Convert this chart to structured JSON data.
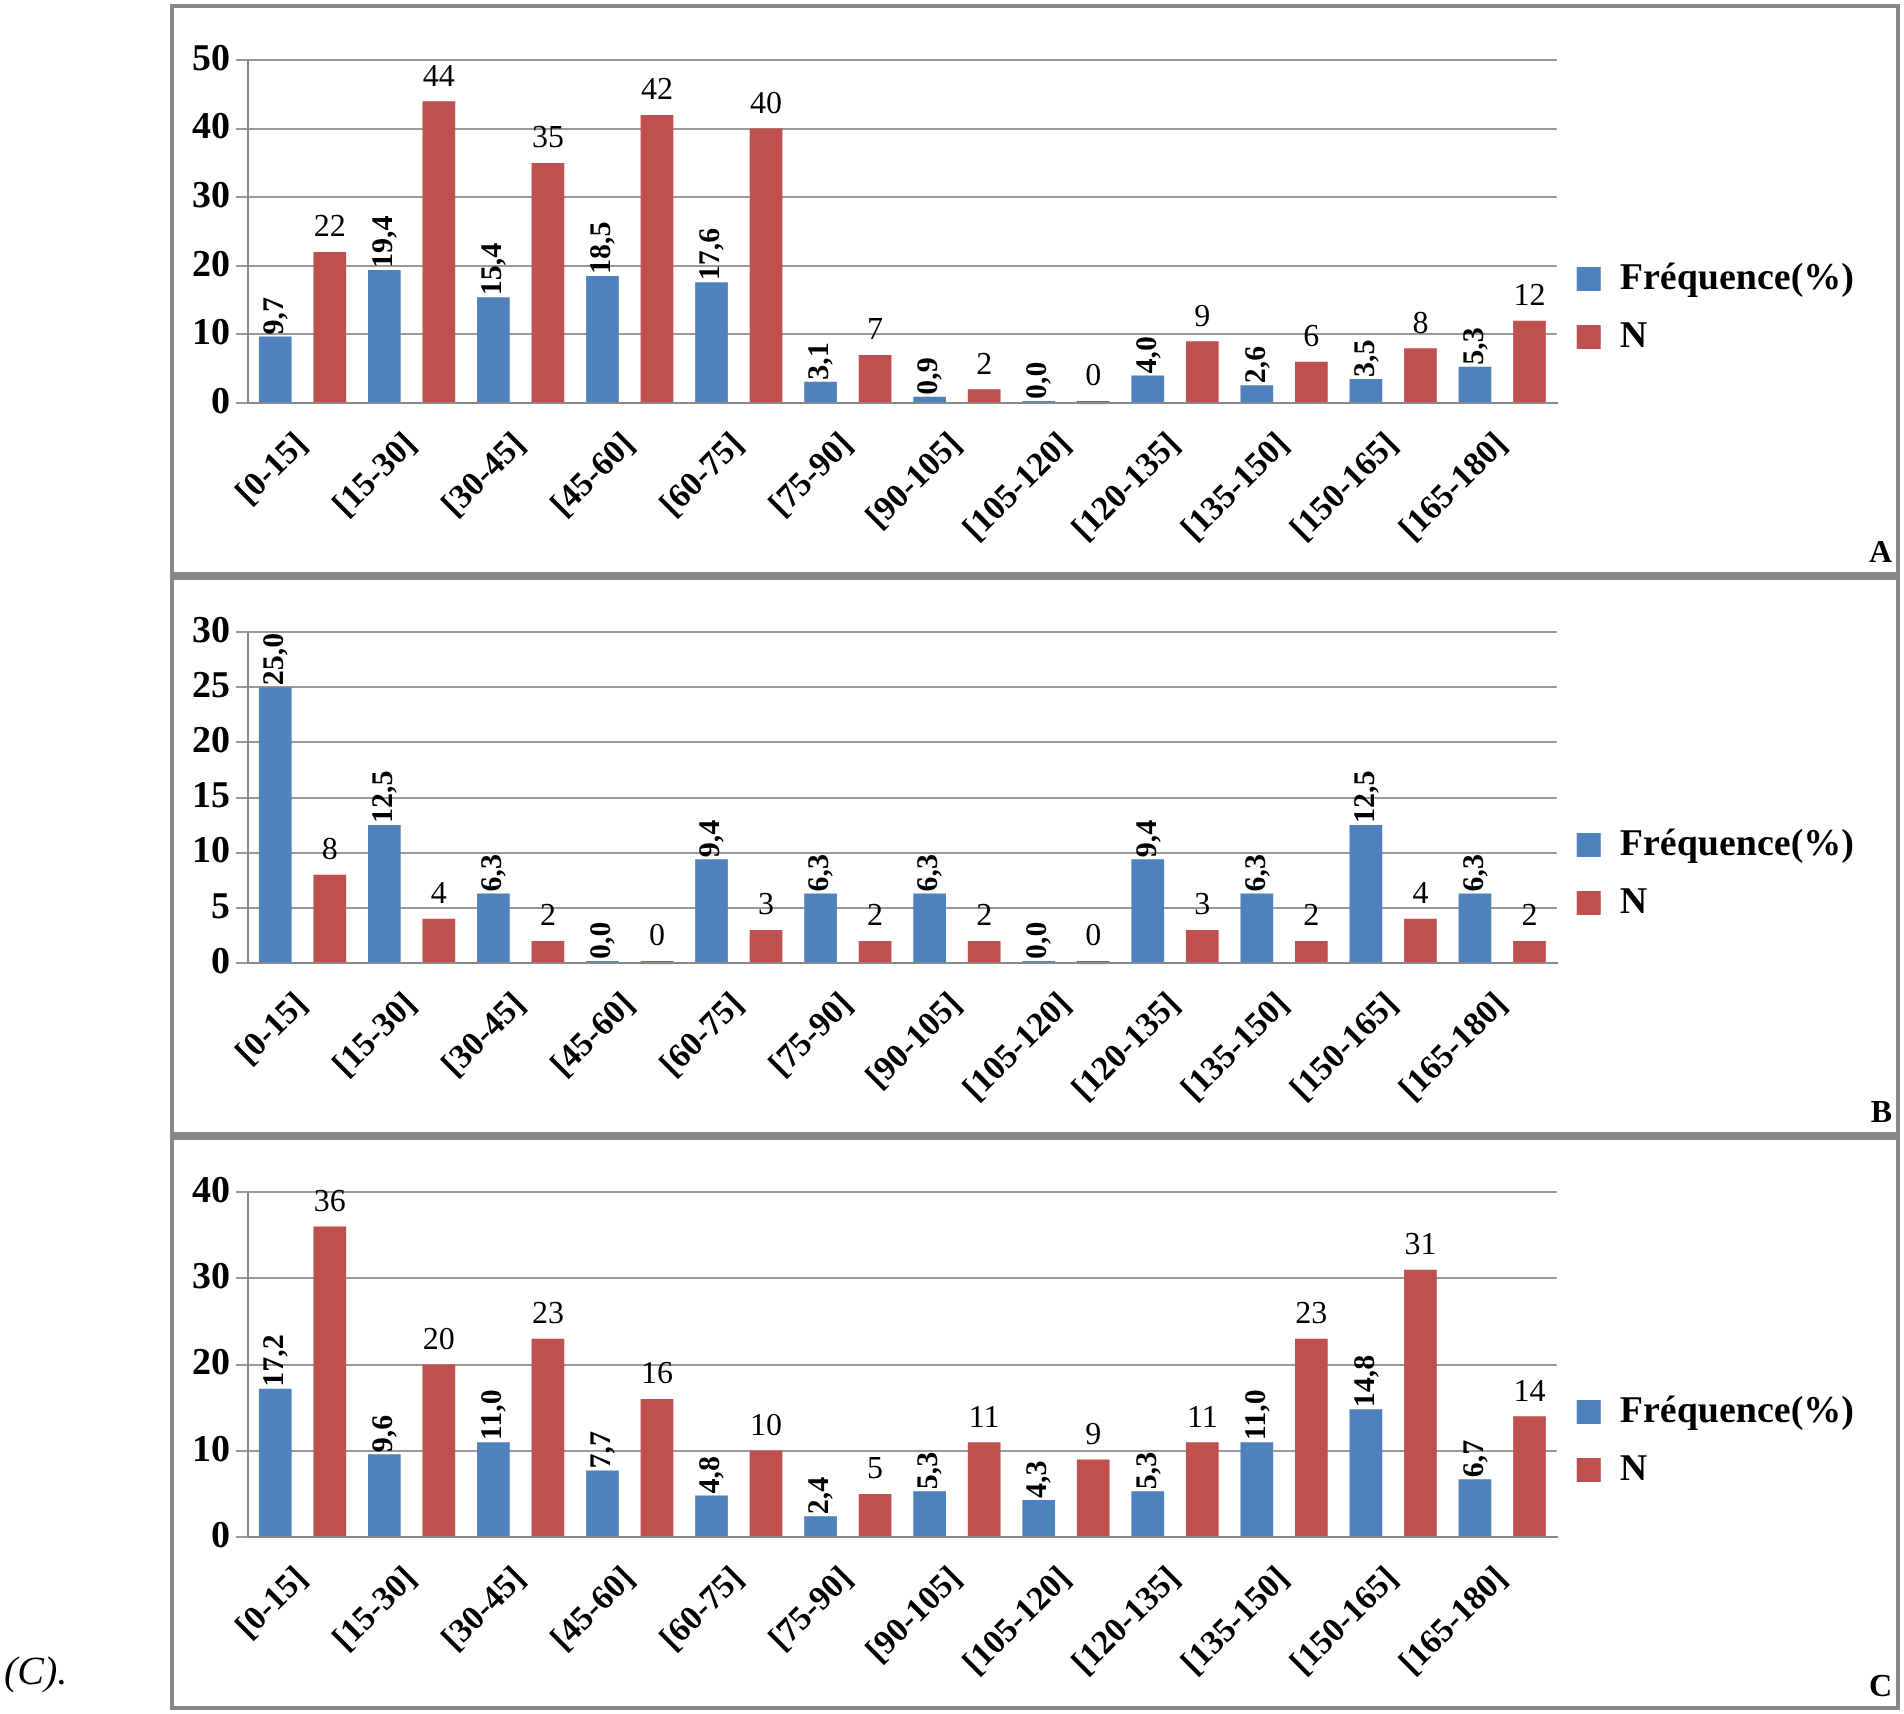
{
  "chart_data": [
    {
      "type": "bar",
      "categories": [
        "[0-15]",
        "[15-30]",
        "[30-45]",
        "[45-60]",
        "[60-75]",
        "[75-90]",
        "[90-105]",
        "[105-120]",
        "[120-135]",
        "[135-150]",
        "[150-165]",
        "[165-180]"
      ],
      "series": [
        {
          "name": "Fréquence(%)",
          "color": "#4f81bd",
          "values": [
            9.7,
            19.4,
            15.4,
            18.5,
            17.6,
            3.1,
            0.9,
            0.0,
            4.0,
            2.6,
            3.5,
            5.3
          ],
          "value_labels": [
            "9,7",
            "19,4",
            "15,4",
            "18,5",
            "17,6",
            "3,1",
            "0,9",
            "0,0",
            "4,0",
            "2,6",
            "3,5",
            "5,3"
          ]
        },
        {
          "name": "N",
          "color": "#c0504d",
          "values": [
            22,
            44,
            35,
            42,
            40,
            7,
            2,
            0,
            9,
            6,
            8,
            12
          ],
          "value_labels": [
            "22",
            "44",
            "35",
            "42",
            "40",
            "7",
            "2",
            "0",
            "9",
            "6",
            "8",
            "12"
          ]
        }
      ],
      "ylim": [
        0,
        50
      ],
      "yticks": [
        0,
        10,
        20,
        30,
        40,
        50
      ],
      "grid": "y",
      "legend": "right",
      "annotations": [
        "A"
      ]
    },
    {
      "type": "bar",
      "categories": [
        "[0-15]",
        "[15-30]",
        "[30-45]",
        "[45-60]",
        "[60-75]",
        "[75-90]",
        "[90-105]",
        "[105-120]",
        "[120-135]",
        "[135-150]",
        "[150-165]",
        "[165-180]"
      ],
      "series": [
        {
          "name": "Fréquence(%)",
          "color": "#4f81bd",
          "values": [
            25.0,
            12.5,
            6.3,
            0.0,
            9.4,
            6.3,
            6.3,
            0.0,
            9.4,
            6.3,
            12.5,
            6.3
          ],
          "value_labels": [
            "25,0",
            "12,5",
            "6,3",
            "0,0",
            "9,4",
            "6,3",
            "6,3",
            "0,0",
            "9,4",
            "6,3",
            "12,5",
            "6,3"
          ]
        },
        {
          "name": "N",
          "color": "#c0504d",
          "values": [
            8,
            4,
            2,
            0,
            3,
            2,
            2,
            0,
            3,
            2,
            4,
            2
          ],
          "value_labels": [
            "8",
            "4",
            "2",
            "0",
            "3",
            "2",
            "2",
            "0",
            "3",
            "2",
            "4",
            "2"
          ]
        }
      ],
      "ylim": [
        0,
        30
      ],
      "yticks": [
        0,
        5,
        10,
        15,
        20,
        25,
        30
      ],
      "grid": "y",
      "legend": "right",
      "annotations": [
        "B"
      ]
    },
    {
      "type": "bar",
      "categories": [
        "[0-15]",
        "[15-30]",
        "[30-45]",
        "[45-60]",
        "[60-75]",
        "[75-90]",
        "[90-105]",
        "[105-120]",
        "[120-135]",
        "[135-150]",
        "[150-165]",
        "[165-180]"
      ],
      "series": [
        {
          "name": "Fréquence(%)",
          "color": "#4f81bd",
          "values": [
            17.2,
            9.6,
            11.0,
            7.7,
            4.8,
            2.4,
            5.3,
            4.3,
            5.3,
            11.0,
            14.8,
            6.7
          ],
          "value_labels": [
            "17,2",
            "9,6",
            "11,0",
            "7,7",
            "4,8",
            "2,4",
            "5,3",
            "4,3",
            "5,3",
            "11,0",
            "14,8",
            "6,7"
          ]
        },
        {
          "name": "N",
          "color": "#c0504d",
          "values": [
            36,
            20,
            23,
            16,
            10,
            5,
            11,
            9,
            11,
            23,
            31,
            14
          ],
          "value_labels": [
            "36",
            "20",
            "23",
            "16",
            "10",
            "5",
            "11",
            "9",
            "11",
            "23",
            "31",
            "14"
          ]
        }
      ],
      "ylim": [
        0,
        40
      ],
      "yticks": [
        0,
        10,
        20,
        30,
        40
      ],
      "grid": "y",
      "legend": "right",
      "annotations": [
        "C",
        "(C)."
      ]
    }
  ]
}
